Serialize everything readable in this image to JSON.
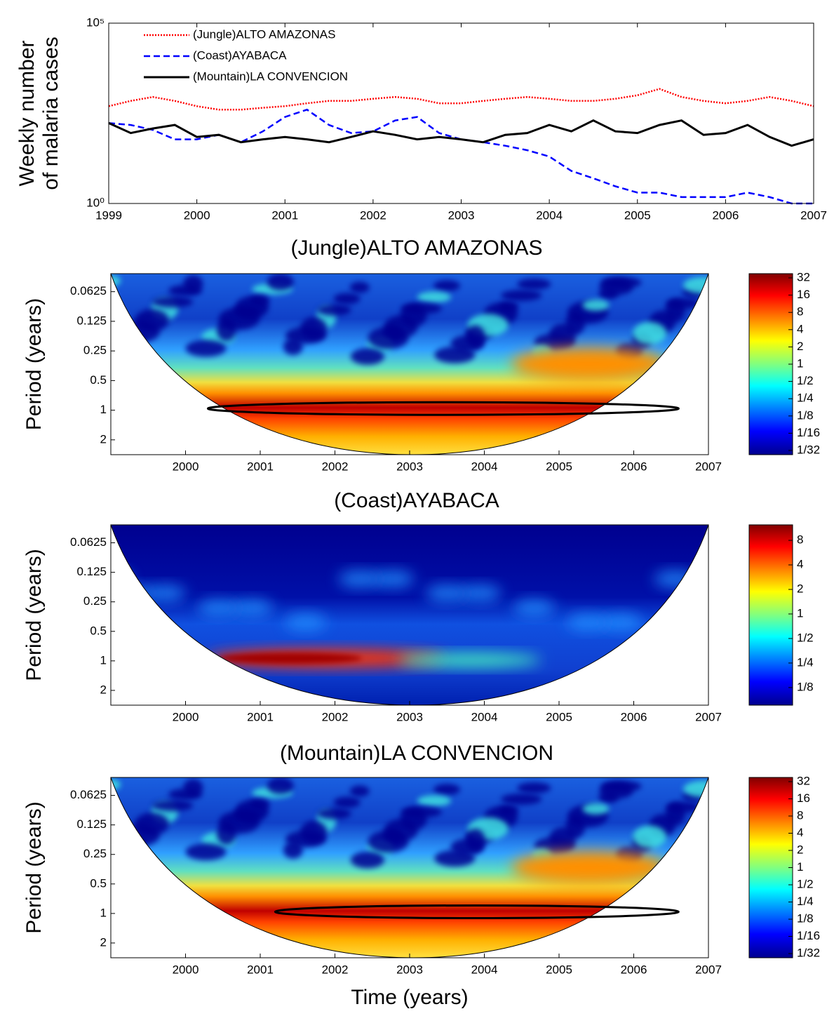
{
  "chart_data": [
    {
      "type": "line",
      "y_label": [
        "Weekly number",
        "of malaria cases"
      ],
      "log_scale": true,
      "xlim": [
        1999,
        2007
      ],
      "xticks": [
        1999,
        2000,
        2001,
        2002,
        2003,
        2004,
        2005,
        2006,
        2007
      ],
      "ylim": [
        1,
        100000
      ],
      "yticks": [
        {
          "value": 1,
          "label": "10⁰"
        },
        {
          "value": 100000,
          "label": "10⁵"
        }
      ],
      "legend": "upper-left",
      "x": [
        1999,
        1999.25,
        1999.5,
        1999.75,
        2000,
        2000.25,
        2000.5,
        2000.75,
        2001,
        2001.25,
        2001.5,
        2001.75,
        2002,
        2002.25,
        2002.5,
        2002.75,
        2003,
        2003.25,
        2003.5,
        2003.75,
        2004,
        2004.25,
        2004.5,
        2004.75,
        2005,
        2005.25,
        2005.5,
        2005.75,
        2006,
        2006.25,
        2006.5,
        2006.75,
        2007
      ],
      "series": [
        {
          "name": "(Jungle)ALTO AMAZONAS",
          "color": "#ff0000",
          "dash": "dotted",
          "values": [
            500,
            700,
            900,
            700,
            500,
            400,
            400,
            450,
            500,
            600,
            700,
            700,
            800,
            900,
            800,
            600,
            600,
            700,
            800,
            900,
            800,
            700,
            700,
            800,
            1000,
            1500,
            900,
            700,
            600,
            700,
            900,
            700,
            500
          ]
        },
        {
          "name": "(Coast)AYABACA",
          "color": "#0000ff",
          "dash": "dashed",
          "values": [
            170,
            150,
            110,
            60,
            60,
            80,
            50,
            100,
            250,
            400,
            150,
            90,
            100,
            200,
            250,
            90,
            60,
            50,
            40,
            30,
            20,
            8,
            5,
            3,
            2,
            2,
            1.5,
            1.5,
            1.5,
            2,
            1.5,
            1,
            1
          ]
        },
        {
          "name": "(Mountain)LA CONVENCION",
          "color": "#000000",
          "dash": "solid",
          "values": [
            170,
            90,
            120,
            150,
            70,
            80,
            50,
            60,
            70,
            60,
            50,
            70,
            100,
            80,
            60,
            70,
            60,
            50,
            80,
            90,
            150,
            100,
            200,
            100,
            90,
            150,
            200,
            80,
            90,
            150,
            70,
            40,
            60
          ]
        }
      ]
    },
    {
      "type": "wavelet",
      "title": "(Jungle)ALTO AMAZONAS",
      "y_label": "Period (years)",
      "colormap": "jet",
      "xlim": [
        1999,
        2007
      ],
      "xticks": [
        2000,
        2001,
        2002,
        2003,
        2004,
        2005,
        2006,
        2007
      ],
      "ylim": [
        0.041,
        2.83
      ],
      "yticks": [
        0.0625,
        0.125,
        0.25,
        0.5,
        1,
        2
      ],
      "clim": [
        0.0264,
        37.9
      ],
      "cticks": [
        32,
        16,
        8,
        4,
        2,
        1,
        {
          "value": 0.5,
          "label": "1/2"
        },
        {
          "value": 0.25,
          "label": "1/4"
        },
        {
          "value": 0.125,
          "label": "1/8"
        },
        {
          "value": 0.0625,
          "label": "1/16"
        },
        {
          "value": 0.03125,
          "label": "1/32"
        }
      ]
    },
    {
      "type": "wavelet",
      "title": "(Coast)AYABACA",
      "y_label": "Period (years)",
      "colormap": "jet",
      "xlim": [
        1999,
        2007
      ],
      "xticks": [
        2000,
        2001,
        2002,
        2003,
        2004,
        2005,
        2006,
        2007
      ],
      "ylim": [
        0.041,
        2.83
      ],
      "yticks": [
        0.0625,
        0.125,
        0.25,
        0.5,
        1,
        2
      ],
      "clim": [
        0.076,
        12.4
      ],
      "cticks": [
        8,
        4,
        2,
        1,
        {
          "value": 0.5,
          "label": "1/2"
        },
        {
          "value": 0.25,
          "label": "1/4"
        },
        {
          "value": 0.125,
          "label": "1/8"
        }
      ]
    },
    {
      "type": "wavelet",
      "title": "(Mountain)LA CONVENCION",
      "y_label": "Period (years)",
      "x_label": "Time (years)",
      "colormap": "jet",
      "xlim": [
        1999,
        2007
      ],
      "xticks": [
        2000,
        2001,
        2002,
        2003,
        2004,
        2005,
        2006,
        2007
      ],
      "ylim": [
        0.041,
        2.83
      ],
      "yticks": [
        0.0625,
        0.125,
        0.25,
        0.5,
        1,
        2
      ],
      "clim": [
        0.0264,
        37.9
      ],
      "cticks": [
        32,
        16,
        8,
        4,
        2,
        1,
        {
          "value": 0.5,
          "label": "1/2"
        },
        {
          "value": 0.25,
          "label": "1/4"
        },
        {
          "value": 0.125,
          "label": "1/8"
        },
        {
          "value": 0.0625,
          "label": "1/16"
        },
        {
          "value": 0.03125,
          "label": "1/32"
        }
      ]
    }
  ]
}
